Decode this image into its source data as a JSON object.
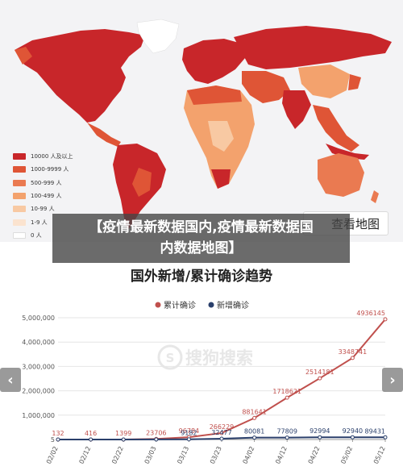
{
  "map": {
    "legend": [
      {
        "label": "10000 人及以上",
        "color": "#c8262a"
      },
      {
        "label": "1000-9999 人",
        "color": "#df5536"
      },
      {
        "label": "500-999 人",
        "color": "#ea7a51"
      },
      {
        "label": "100-499 人",
        "color": "#f3a26d"
      },
      {
        "label": "10-99 人",
        "color": "#f8c9a3"
      },
      {
        "label": "1-9 人",
        "color": "#fbe3cf"
      },
      {
        "label": "0 人",
        "color": "#ffffff"
      }
    ],
    "view_button": "查看地图",
    "colors": {
      "land_dark": "#c8262a",
      "land_mid": "#df5536",
      "land_light": "#f3a26d",
      "ocean": "#f3f3f5"
    }
  },
  "caption": {
    "line1": "【疫情最新数据国内,疫情最新数据国",
    "line2": "内数据地图】"
  },
  "watermark": "搜狗搜索",
  "nav": {
    "prev_icon": "chevron-left-icon",
    "next_icon": "chevron-right-icon",
    "prev_glyph": "‹",
    "next_glyph": "›"
  },
  "chart_data": {
    "type": "line",
    "title": "国外新增/累计确诊趋势",
    "categories": [
      "02/02",
      "02/12",
      "02/22",
      "03/03",
      "03/13",
      "03/23",
      "04/02",
      "04/12",
      "04/22",
      "05/02",
      "05/12"
    ],
    "ylim": [
      0,
      5000000
    ],
    "y_ticks": [
      "5,000,000",
      "4,000,000",
      "3,000,000",
      "2,000,000",
      "1,000,000",
      "5"
    ],
    "legend_position": "top",
    "series": [
      {
        "name": "累计确诊",
        "color": "#c0504d",
        "values": [
          132,
          416,
          1399,
          23706,
          96784,
          266229,
          881641,
          1718621,
          2514181,
          3348741,
          4936145
        ],
        "labels": [
          "132",
          "416",
          "1399",
          "23706",
          "96784",
          "266229",
          "881641",
          "1718621",
          "2514181",
          "3348741",
          "4936145"
        ]
      },
      {
        "name": "新增确诊",
        "color": "#2a3f6b",
        "values": [
          30,
          55,
          339,
          2376,
          9182,
          32477,
          80081,
          77809,
          92994,
          92940,
          89431
        ],
        "labels": [
          "",
          "",
          "",
          "",
          "9182",
          "32477",
          "80081",
          "77809",
          "92994",
          "92940",
          "89431"
        ]
      }
    ]
  }
}
